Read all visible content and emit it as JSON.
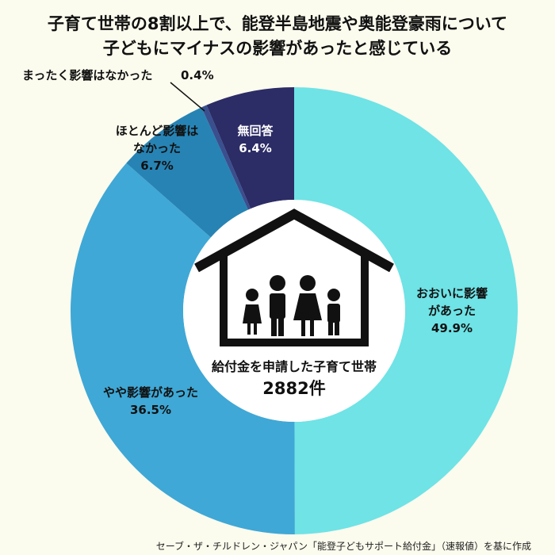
{
  "title_lines": [
    "子育て世帯の8割以上で、能登半島地震や奥能登豪雨について",
    "子どもにマイナスの影響があったと感じている"
  ],
  "chart_data": {
    "type": "pie",
    "donut": true,
    "start_angle_deg": 0,
    "direction": "clockwise",
    "unit": "%",
    "slices": [
      {
        "label_lines": [
          "おおいに影響",
          "があった"
        ],
        "value": 49.9,
        "color": "#6fe3e6"
      },
      {
        "label_lines": [
          "やや影響があった"
        ],
        "value": 36.5,
        "color": "#3fa8d6"
      },
      {
        "label_lines": [
          "ほとんど影響は",
          "なかった"
        ],
        "value": 6.7,
        "color": "#2783b4"
      },
      {
        "label_lines": [
          "まったく影響はなかった"
        ],
        "value": 0.4,
        "color": "#3a4f8e"
      },
      {
        "label_lines": [
          "無回答"
        ],
        "value": 6.4,
        "color": "#2c2c66"
      }
    ],
    "center": {
      "label": "給付金を申請した子育て世帯",
      "count": "2882件"
    }
  },
  "source": "セーブ・ザ・チルドレン・ジャパン「能登子どもサポート給付金」（速報値）を基に作成"
}
